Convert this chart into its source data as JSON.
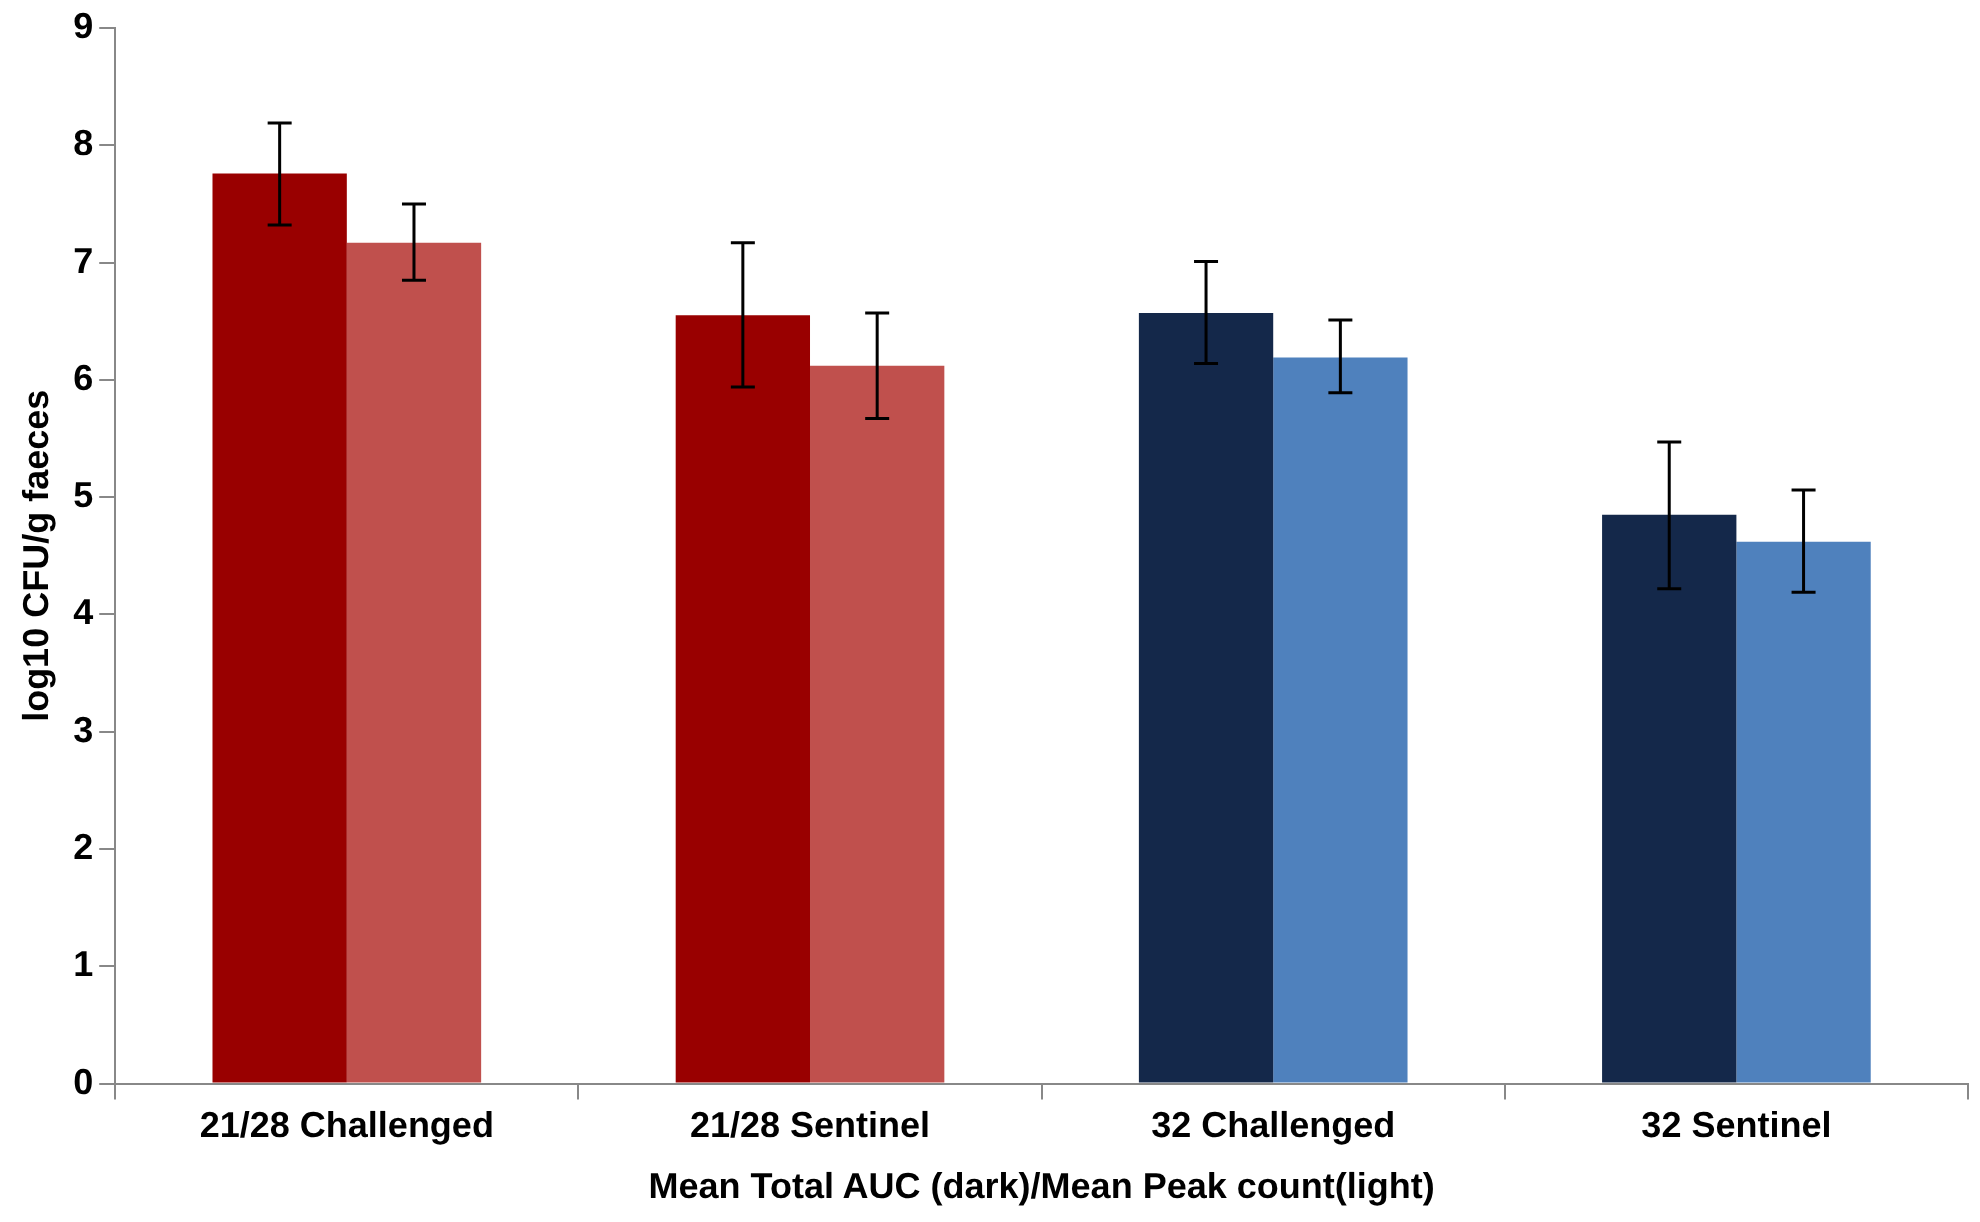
{
  "chart_data": {
    "type": "bar",
    "xlabel": "Mean Total AUC (dark)/Mean Peak count(light)",
    "ylabel": "log10 CFU/g faeces",
    "categories": [
      "21/28 Challenged",
      "21/28 Sentinel",
      "32 Challenged",
      "32 Sentinel"
    ],
    "series": [
      {
        "colors": [
          "#990000",
          "#990000",
          "#14284a",
          "#14284a"
        ],
        "values": [
          7.76,
          6.55,
          6.57,
          4.85
        ],
        "errors": [
          [
            7.32,
            8.19
          ],
          [
            5.94,
            7.17
          ],
          [
            6.14,
            7.01
          ],
          [
            4.22,
            5.47
          ]
        ]
      },
      {
        "colors": [
          "#c0504d",
          "#c0504d",
          "#4f81bd",
          "#4f81bd"
        ],
        "values": [
          7.17,
          6.12,
          6.19,
          4.62
        ],
        "errors": [
          [
            6.85,
            7.5
          ],
          [
            5.67,
            6.57
          ],
          [
            5.89,
            6.51
          ],
          [
            4.19,
            5.06
          ]
        ]
      }
    ],
    "ylim": [
      0,
      9
    ],
    "yticks": [
      0,
      1,
      2,
      3,
      4,
      5,
      6,
      7,
      8,
      9
    ],
    "grid": false,
    "legend": false
  }
}
